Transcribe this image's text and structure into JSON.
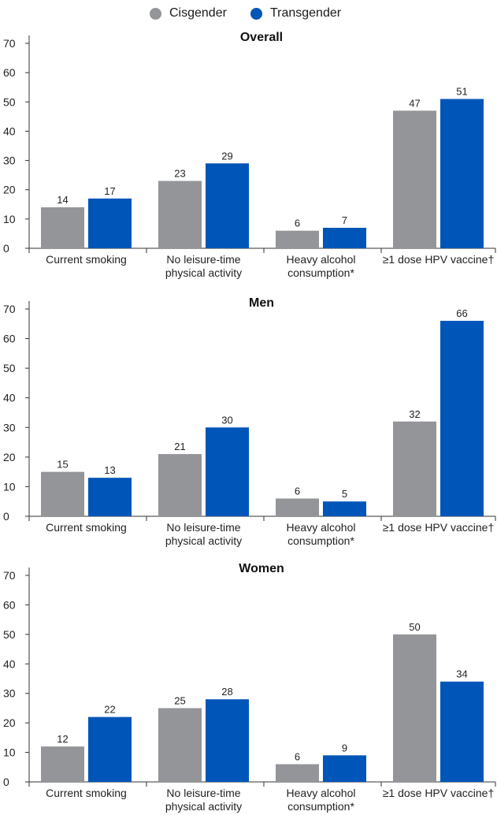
{
  "legend": {
    "cis_label": "Cisgender",
    "trans_label": "Transgender"
  },
  "colors": {
    "cisgender": "#939598",
    "transgender": "#0055B8",
    "axis": "#333333"
  },
  "chart_data": [
    {
      "type": "bar",
      "title": "Overall",
      "categories": [
        [
          "Current smoking"
        ],
        [
          "No leisure-time",
          "physical activity"
        ],
        [
          "Heavy alcohol",
          "consumption*"
        ],
        [
          "≥1 dose HPV vaccine†"
        ]
      ],
      "series": [
        {
          "name": "Cisgender",
          "values": [
            14,
            23,
            6,
            47
          ]
        },
        {
          "name": "Transgender",
          "values": [
            17,
            29,
            7,
            51
          ]
        }
      ],
      "yticks": [
        0,
        10,
        20,
        30,
        40,
        50,
        60,
        70
      ],
      "ylim": [
        0,
        70
      ],
      "grid": false
    },
    {
      "type": "bar",
      "title": "Men",
      "categories": [
        [
          "Current smoking"
        ],
        [
          "No leisure-time",
          "physical activity"
        ],
        [
          "Heavy alcohol",
          "consumption*"
        ],
        [
          "≥1 dose HPV vaccine†"
        ]
      ],
      "series": [
        {
          "name": "Cisgender",
          "values": [
            15,
            21,
            6,
            32
          ]
        },
        {
          "name": "Transgender",
          "values": [
            13,
            30,
            5,
            66
          ]
        }
      ],
      "yticks": [
        0,
        10,
        20,
        30,
        40,
        50,
        60,
        70
      ],
      "ylim": [
        0,
        70
      ],
      "grid": false
    },
    {
      "type": "bar",
      "title": "Women",
      "categories": [
        [
          "Current smoking"
        ],
        [
          "No leisure-time",
          "physical activity"
        ],
        [
          "Heavy alcohol",
          "consumption*"
        ],
        [
          "≥1 dose HPV vaccine†"
        ]
      ],
      "series": [
        {
          "name": "Cisgender",
          "values": [
            12,
            25,
            6,
            50
          ]
        },
        {
          "name": "Transgender",
          "values": [
            22,
            28,
            9,
            34
          ]
        }
      ],
      "yticks": [
        0,
        10,
        20,
        30,
        40,
        50,
        60,
        70
      ],
      "ylim": [
        0,
        70
      ],
      "grid": false
    }
  ]
}
